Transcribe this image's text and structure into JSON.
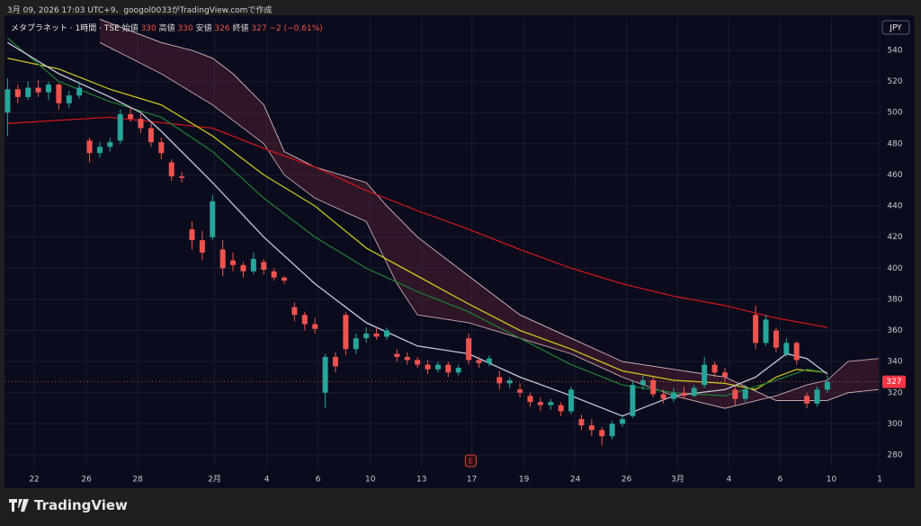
{
  "caption": "3月 09, 2026 17:03 UTC+9、googol0033がTradingView.comで作成",
  "brand": "TradingView",
  "chart_data": {
    "type": "candlestick",
    "symbol": "メタプラネット · 1時間 · TSE",
    "legend": [
      {
        "label": "始値",
        "value": 330
      },
      {
        "label": "高値",
        "value": 330
      },
      {
        "label": "安値",
        "value": 326
      },
      {
        "label": "終値",
        "value": 327
      }
    ],
    "change": "−2 (−0.61%)",
    "currency": "JPY",
    "last_price": 327,
    "event_marker": "E",
    "up_color": "#26a69a",
    "down_color": "#ef5350",
    "ylim": [
      271.9,
      560.8
    ],
    "yticks": [
      280,
      300,
      320,
      340,
      360,
      380,
      400,
      420,
      440,
      460,
      480,
      500,
      520,
      540
    ],
    "xlim": [
      -0.3,
      85.1
    ],
    "xticks": [
      {
        "value": 2.6,
        "label": "22"
      },
      {
        "value": 7.7,
        "label": "26"
      },
      {
        "value": 12.7,
        "label": "28"
      },
      {
        "value": 20.2,
        "label": "2月"
      },
      {
        "value": 25.3,
        "label": "4"
      },
      {
        "value": 30.3,
        "label": "6"
      },
      {
        "value": 35.4,
        "label": "10"
      },
      {
        "value": 40.4,
        "label": "13"
      },
      {
        "value": 45.3,
        "label": "17"
      },
      {
        "value": 50.4,
        "label": "19"
      },
      {
        "value": 55.4,
        "label": "24"
      },
      {
        "value": 60.4,
        "label": "26"
      },
      {
        "value": 65.4,
        "label": "3月"
      },
      {
        "value": 70.4,
        "label": "4"
      },
      {
        "value": 75.4,
        "label": "6"
      },
      {
        "value": 80.4,
        "label": "10"
      },
      {
        "value": 85.1,
        "label": "1"
      }
    ],
    "grid": true,
    "candles": [
      [
        500,
        522,
        485,
        515
      ],
      [
        515,
        518,
        506,
        510
      ],
      [
        510,
        520,
        508,
        516
      ],
      [
        516,
        521,
        510,
        513
      ],
      [
        513,
        520,
        508,
        518
      ],
      [
        518,
        519,
        502,
        506
      ],
      [
        506,
        514,
        503,
        511
      ],
      [
        511,
        520,
        509,
        516
      ],
      [
        482,
        484,
        468,
        474
      ],
      [
        474,
        481,
        471,
        478
      ],
      [
        478,
        484,
        475,
        481
      ],
      [
        482,
        502,
        480,
        499
      ],
      [
        499,
        503,
        494,
        496
      ],
      [
        496,
        499,
        487,
        490
      ],
      [
        490,
        493,
        478,
        481
      ],
      [
        481,
        484,
        470,
        474
      ],
      [
        468,
        470,
        456,
        459
      ],
      [
        459,
        462,
        455,
        458
      ],
      [
        425,
        430,
        412,
        418
      ],
      [
        418,
        424,
        405,
        410
      ],
      [
        420,
        447,
        418,
        443
      ],
      [
        412,
        418,
        395,
        400
      ],
      [
        405,
        410,
        398,
        402
      ],
      [
        402,
        404,
        394,
        398
      ],
      [
        398,
        410,
        396,
        406
      ],
      [
        404,
        406,
        396,
        399
      ],
      [
        398,
        400,
        392,
        394
      ],
      [
        394,
        395,
        390,
        392
      ],
      [
        375,
        378,
        366,
        370
      ],
      [
        370,
        372,
        360,
        364
      ],
      [
        364,
        368,
        358,
        361
      ],
      [
        320,
        345,
        310,
        343
      ],
      [
        343,
        346,
        333,
        337
      ],
      [
        370,
        372,
        344,
        348
      ],
      [
        348,
        358,
        345,
        355
      ],
      [
        355,
        362,
        352,
        358
      ],
      [
        358,
        362,
        354,
        356
      ],
      [
        356,
        362,
        354,
        360
      ],
      [
        345,
        348,
        340,
        343
      ],
      [
        343,
        346,
        338,
        341
      ],
      [
        341,
        343,
        336,
        338
      ],
      [
        338,
        341,
        332,
        335
      ],
      [
        335,
        340,
        333,
        338
      ],
      [
        338,
        340,
        330,
        333
      ],
      [
        333,
        338,
        331,
        336
      ],
      [
        355,
        358,
        338,
        341
      ],
      [
        341,
        343,
        336,
        339
      ],
      [
        339,
        344,
        337,
        342
      ],
      [
        330,
        334,
        322,
        326
      ],
      [
        326,
        330,
        323,
        328
      ],
      [
        322,
        326,
        317,
        320
      ],
      [
        318,
        320,
        311,
        314
      ],
      [
        314,
        317,
        308,
        312
      ],
      [
        312,
        316,
        309,
        314
      ],
      [
        312,
        314,
        305,
        308
      ],
      [
        308,
        324,
        306,
        322
      ],
      [
        303,
        306,
        296,
        299
      ],
      [
        299,
        303,
        292,
        296
      ],
      [
        296,
        298,
        286,
        292
      ],
      [
        292,
        302,
        290,
        300
      ],
      [
        300,
        306,
        298,
        303
      ],
      [
        305,
        328,
        304,
        325
      ],
      [
        325,
        331,
        322,
        328
      ],
      [
        328,
        330,
        317,
        319
      ],
      [
        319,
        322,
        313,
        316
      ],
      [
        316,
        323,
        314,
        320
      ],
      [
        320,
        324,
        316,
        318
      ],
      [
        318,
        325,
        317,
        323
      ],
      [
        325,
        343,
        323,
        338
      ],
      [
        338,
        340,
        330,
        333
      ],
      [
        333,
        336,
        327,
        330
      ],
      [
        322,
        324,
        312,
        316
      ],
      [
        316,
        325,
        314,
        322
      ],
      [
        370,
        376,
        348,
        352
      ],
      [
        352,
        370,
        350,
        367
      ],
      [
        360,
        362,
        346,
        349
      ],
      [
        345,
        355,
        343,
        352
      ],
      [
        352,
        353,
        338,
        341
      ],
      [
        318,
        320,
        310,
        313
      ],
      [
        313,
        324,
        311,
        322
      ],
      [
        322,
        331,
        320,
        327
      ]
    ],
    "cloud": {
      "fill": "#5a2438",
      "span_a": {
        "color": "#c9a7b4",
        "x": [
          9,
          15,
          20,
          25,
          27,
          30,
          35,
          38,
          40,
          45,
          50,
          55,
          60,
          65,
          70,
          75,
          78,
          80,
          82,
          85
        ],
        "values": [
          545,
          525,
          505,
          480,
          460,
          445,
          430,
          390,
          370,
          365,
          355,
          345,
          330,
          318,
          310,
          318,
          325,
          328,
          340,
          342
        ]
      },
      "span_b": {
        "color": "#d8b8c4",
        "x": [
          9,
          15,
          18,
          20,
          22,
          25,
          27,
          30,
          35,
          37,
          40,
          45,
          50,
          55,
          60,
          65,
          70,
          75,
          78,
          80,
          82,
          85
        ],
        "values": [
          560,
          545,
          540,
          535,
          525,
          505,
          475,
          465,
          455,
          440,
          420,
          395,
          370,
          355,
          340,
          335,
          330,
          315,
          315,
          315,
          320,
          322
        ]
      }
    },
    "lines": [
      {
        "color": "#c8161d",
        "x": [
          0,
          10,
          20,
          25,
          30,
          35,
          40,
          45,
          50,
          55,
          60,
          65,
          70,
          75,
          80
        ],
        "values": [
          493,
          497,
          490,
          477,
          465,
          450,
          437,
          425,
          412,
          400,
          390,
          382,
          376,
          368,
          362
        ]
      },
      {
        "color": "#c9c41f",
        "x": [
          0,
          5,
          10,
          15,
          20,
          25,
          30,
          35,
          40,
          45,
          50,
          55,
          60,
          65,
          70,
          73,
          75,
          77,
          80
        ],
        "values": [
          535,
          528,
          515,
          505,
          485,
          460,
          440,
          413,
          395,
          377,
          360,
          348,
          334,
          328,
          326,
          322,
          330,
          335,
          333
        ]
      },
      {
        "color": "#1f7a34",
        "x": [
          0,
          5,
          10,
          15,
          20,
          25,
          30,
          35,
          40,
          45,
          50,
          55,
          60,
          65,
          70,
          75,
          78,
          80
        ],
        "values": [
          548,
          520,
          507,
          497,
          475,
          445,
          420,
          400,
          385,
          372,
          355,
          338,
          325,
          320,
          318,
          328,
          335,
          333
        ]
      },
      {
        "color": "#c7c9dc",
        "x": [
          0,
          5,
          10,
          13,
          15,
          20,
          25,
          30,
          35,
          40,
          45,
          50,
          55,
          60,
          65,
          70,
          73,
          76,
          78,
          80
        ],
        "values": [
          545,
          525,
          510,
          500,
          488,
          455,
          420,
          390,
          365,
          350,
          345,
          330,
          318,
          305,
          318,
          322,
          330,
          345,
          342,
          332
        ]
      }
    ]
  }
}
